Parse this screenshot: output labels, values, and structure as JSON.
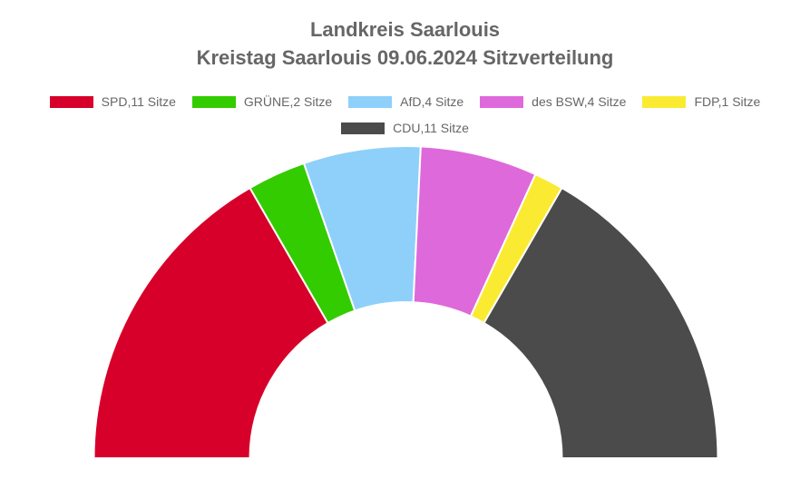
{
  "title_line1": "Landkreis Saarlouis",
  "title_line2": "Kreistag Saarlouis 09.06.2024 Sitzverteilung",
  "chart_data": {
    "type": "pie",
    "subtype": "half-donut (parliament)",
    "title": "Landkreis Saarlouis\nKreistag Saarlouis 09.06.2024 Sitzverteilung",
    "legend_position": "top",
    "series": [
      {
        "name": "SPD",
        "label": "SPD,11 Sitze",
        "value": 11,
        "color": "#D7002A"
      },
      {
        "name": "GRÜNE",
        "label": "GRÜNE,2 Sitze",
        "value": 2,
        "color": "#33CC00"
      },
      {
        "name": "AfD",
        "label": "AfD,4 Sitze",
        "value": 4,
        "color": "#8ED0FA"
      },
      {
        "name": "des BSW",
        "label": "des BSW,4 Sitze",
        "value": 4,
        "color": "#DE69DB"
      },
      {
        "name": "FDP",
        "label": "FDP,1 Sitze",
        "value": 1,
        "color": "#FAEB32"
      },
      {
        "name": "CDU",
        "label": "CDU,11 Sitze",
        "value": 11,
        "color": "#4B4B4B"
      }
    ]
  }
}
